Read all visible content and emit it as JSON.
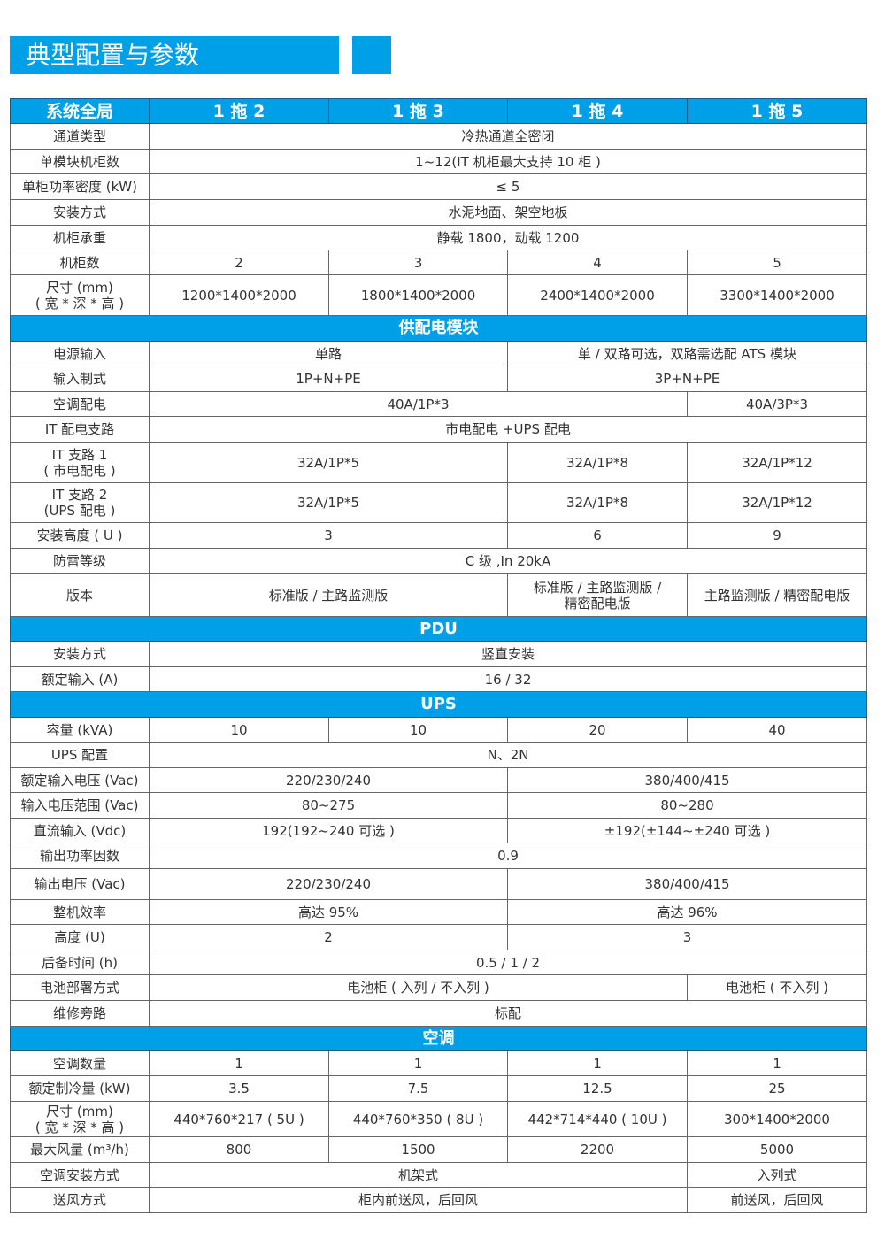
{
  "title": "典型配置与参数",
  "accent_color": "#00a0e9",
  "header": [
    "系统全局",
    "1 拖 2",
    "1 拖 3",
    "1 拖 4",
    "1 拖 5"
  ],
  "rows": [
    {
      "label": "通道类型",
      "cells": [
        {
          "text": "冷热通道全密闭",
          "span": 4
        }
      ]
    },
    {
      "label": "单模块机柜数",
      "cells": [
        {
          "text": "1~12(IT 机柜最大支持 10 柜 )",
          "span": 4
        }
      ]
    },
    {
      "label": "单柜功率密度 (kW)",
      "cells": [
        {
          "text": "≤ 5",
          "span": 4
        }
      ]
    },
    {
      "label": "安装方式",
      "cells": [
        {
          "text": "水泥地面、架空地板",
          "span": 4
        }
      ]
    },
    {
      "label": "机柜承重",
      "cells": [
        {
          "text": "静载 1800，动载 1200",
          "span": 4
        }
      ]
    },
    {
      "label": "机柜数",
      "cells": [
        {
          "text": "2",
          "span": 1
        },
        {
          "text": "3",
          "span": 1
        },
        {
          "text": "4",
          "span": 1
        },
        {
          "text": "5",
          "span": 1
        }
      ]
    },
    {
      "label": "尺寸 (mm)\n( 宽 * 深 * 高 )",
      "cells": [
        {
          "text": "1200*1400*2000",
          "span": 1
        },
        {
          "text": "1800*1400*2000",
          "span": 1
        },
        {
          "text": "2400*1400*2000",
          "span": 1
        },
        {
          "text": "3300*1400*2000",
          "span": 1
        }
      ]
    },
    {
      "section": "供配电模块"
    },
    {
      "label": "电源输入",
      "cells": [
        {
          "text": "单路",
          "span": 2
        },
        {
          "text": "单 / 双路可选，双路需选配 ATS 模块",
          "span": 2
        }
      ]
    },
    {
      "label": "输入制式",
      "cells": [
        {
          "text": "1P+N+PE",
          "span": 2
        },
        {
          "text": "3P+N+PE",
          "span": 2
        }
      ]
    },
    {
      "label": "空调配电",
      "cells": [
        {
          "text": "40A/1P*3",
          "span": 3
        },
        {
          "text": "40A/3P*3",
          "span": 1
        }
      ]
    },
    {
      "label": "IT 配电支路",
      "cells": [
        {
          "text": "市电配电 +UPS 配电",
          "span": 4
        }
      ]
    },
    {
      "label": "IT 支路 1\n( 市电配电 )",
      "cells": [
        {
          "text": "32A/1P*5",
          "span": 2
        },
        {
          "text": "32A/1P*8",
          "span": 1
        },
        {
          "text": "32A/1P*12",
          "span": 1
        }
      ]
    },
    {
      "label": "IT 支路 2\n(UPS 配电 )",
      "cells": [
        {
          "text": "32A/1P*5",
          "span": 2
        },
        {
          "text": "32A/1P*8",
          "span": 1
        },
        {
          "text": "32A/1P*12",
          "span": 1
        }
      ]
    },
    {
      "label": "安装高度 ( U )",
      "cells": [
        {
          "text": "3",
          "span": 2
        },
        {
          "text": "6",
          "span": 1
        },
        {
          "text": "9",
          "span": 1
        }
      ]
    },
    {
      "label": "防雷等级",
      "cells": [
        {
          "text": "C 级 ,In 20kA",
          "span": 4
        }
      ]
    },
    {
      "label": "版本",
      "cells": [
        {
          "text": "标准版 / 主路监测版",
          "span": 2
        },
        {
          "text": "标准版 / 主路监测版 /\n精密配电版",
          "span": 1
        },
        {
          "text": "主路监测版 / 精密配电版",
          "span": 1
        }
      ]
    },
    {
      "section": "PDU"
    },
    {
      "label": "安装方式",
      "cells": [
        {
          "text": "竖直安装",
          "span": 4
        }
      ]
    },
    {
      "label": "额定输入 (A)",
      "cells": [
        {
          "text": "16 / 32",
          "span": 4
        }
      ]
    },
    {
      "section": "UPS"
    },
    {
      "label": "容量 (kVA)",
      "cells": [
        {
          "text": "10",
          "span": 1
        },
        {
          "text": "10",
          "span": 1
        },
        {
          "text": "20",
          "span": 1
        },
        {
          "text": "40",
          "span": 1
        }
      ]
    },
    {
      "label": "UPS 配置",
      "cells": [
        {
          "text": "N、2N",
          "span": 4
        }
      ]
    },
    {
      "label": "额定输入电压 (Vac)",
      "cells": [
        {
          "text": "220/230/240",
          "span": 2
        },
        {
          "text": "380/400/415",
          "span": 2
        }
      ]
    },
    {
      "label": "输入电压范围 (Vac)",
      "cells": [
        {
          "text": "80~275",
          "span": 2
        },
        {
          "text": "80~280",
          "span": 2
        }
      ]
    },
    {
      "label": "直流输入 (Vdc)",
      "cells": [
        {
          "text": "192(192~240 可选 )",
          "span": 2
        },
        {
          "text": "±192(±144~±240 可选 )",
          "span": 2
        }
      ]
    },
    {
      "label": "输出功率因数",
      "cells": [
        {
          "text": "0.9",
          "span": 4
        }
      ]
    },
    {
      "label": "输出电压 (Vac)",
      "cells": [
        {
          "text": "220/230/240",
          "span": 2
        },
        {
          "text": "380/400/415",
          "span": 2
        }
      ]
    },
    {
      "label": "整机效率",
      "cells": [
        {
          "text": "高达 95%",
          "span": 2
        },
        {
          "text": "高达 96%",
          "span": 2
        }
      ]
    },
    {
      "label": "高度 (U)",
      "cells": [
        {
          "text": "2",
          "span": 2
        },
        {
          "text": "3",
          "span": 2
        }
      ]
    },
    {
      "label": "后备时间 (h)",
      "cells": [
        {
          "text": "0.5 / 1 / 2",
          "span": 4
        }
      ]
    },
    {
      "label": "电池部署方式",
      "cells": [
        {
          "text": "电池柜 ( 入列 / 不入列 )",
          "span": 3
        },
        {
          "text": "电池柜 ( 不入列 )",
          "span": 1
        }
      ]
    },
    {
      "label": "维修旁路",
      "cells": [
        {
          "text": "标配",
          "span": 4
        }
      ]
    },
    {
      "section": "空调"
    },
    {
      "label": "空调数量",
      "cells": [
        {
          "text": "1",
          "span": 1
        },
        {
          "text": "1",
          "span": 1
        },
        {
          "text": "1",
          "span": 1
        },
        {
          "text": "1",
          "span": 1
        }
      ]
    },
    {
      "label": "额定制冷量 (kW)",
      "cells": [
        {
          "text": "3.5",
          "span": 1
        },
        {
          "text": "7.5",
          "span": 1
        },
        {
          "text": "12.5",
          "span": 1
        },
        {
          "text": "25",
          "span": 1
        }
      ]
    },
    {
      "label": "尺寸 (mm)\n( 宽 * 深 * 高 )",
      "cells": [
        {
          "text": "440*760*217 ( 5U )",
          "span": 1
        },
        {
          "text": "440*760*350 ( 8U )",
          "span": 1
        },
        {
          "text": "442*714*440 ( 10U )",
          "span": 1
        },
        {
          "text": "300*1400*2000",
          "span": 1
        }
      ]
    },
    {
      "label": "最大风量 (m³/h)",
      "cells": [
        {
          "text": "800",
          "span": 1
        },
        {
          "text": "1500",
          "span": 1
        },
        {
          "text": "2200",
          "span": 1
        },
        {
          "text": "5000",
          "span": 1
        }
      ]
    },
    {
      "label": "空调安装方式",
      "cells": [
        {
          "text": "机架式",
          "span": 3
        },
        {
          "text": "入列式",
          "span": 1
        }
      ]
    },
    {
      "label": "送风方式",
      "cells": [
        {
          "text": "柜内前送风，后回风",
          "span": 3
        },
        {
          "text": "前送风，后回风",
          "span": 1
        }
      ]
    }
  ]
}
